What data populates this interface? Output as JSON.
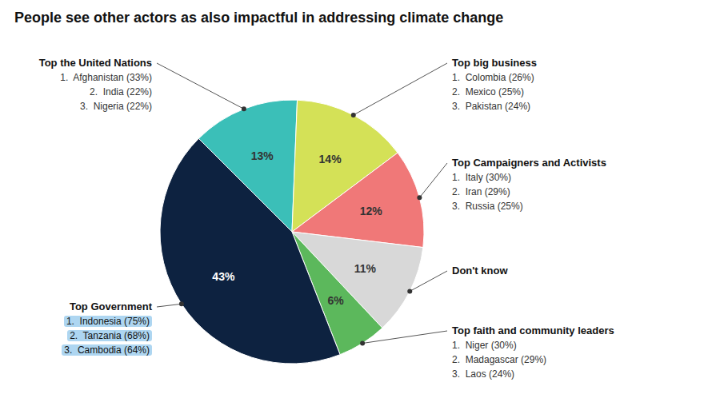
{
  "chart_data": {
    "type": "pie",
    "title": "People see other actors as also impactful in addressing climate change",
    "categories": [
      "Top the United Nations",
      "Top big business",
      "Top Campaigners and Activists",
      "Don't know",
      "Top faith and community leaders",
      "Top Government"
    ],
    "values": [
      13,
      14,
      12,
      11,
      6,
      43
    ],
    "value_labels": [
      "13%",
      "14%",
      "12%",
      "11%",
      "6%",
      "43%"
    ],
    "colors": [
      "#3bbfb8",
      "#d4e157",
      "#f07878",
      "#d8d8d8",
      "#5cb85c",
      "#0d2240"
    ],
    "data_labels": true,
    "annotations": [
      {
        "items": [
          "1.  Afghanistan (33%)",
          "2.  India (22%)",
          "3.  Nigeria (22%)"
        ]
      },
      {
        "items": [
          "1.  Colombia (26%)",
          "2.  Mexico (25%)",
          "3.  Pakistan (24%)"
        ]
      },
      {
        "items": [
          "1.  Italy (30%)",
          "2.  Iran (29%)",
          "3.  Russia (25%)"
        ]
      },
      {
        "items": []
      },
      {
        "items": [
          "1.  Niger (30%)",
          "2.  Madagascar (29%)",
          "3.  Laos (24%)"
        ]
      },
      {
        "items": [
          "1.  Indonesia (75%)",
          "2.  Tanzania (68%)",
          "3.  Cambodia (64%)"
        ],
        "color": "#aed6f1"
      }
    ]
  }
}
